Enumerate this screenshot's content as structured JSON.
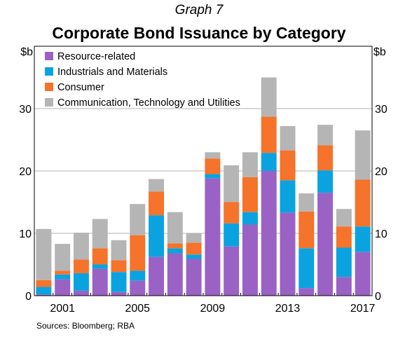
{
  "header": {
    "graph_number": "Graph 7",
    "title": "Corporate Bond Issuance by Category"
  },
  "footer": {
    "source": "Sources:  Bloomberg; RBA"
  },
  "chart_data": {
    "type": "bar",
    "stacked": true,
    "title": "Corporate Bond Issuance by Category",
    "unit_left": "$b",
    "unit_right": "$b",
    "ylim": [
      0,
      40
    ],
    "yticks": [
      0,
      10,
      20,
      30
    ],
    "grid": true,
    "legend_position": "top-left",
    "x": [
      2000,
      2001,
      2002,
      2003,
      2004,
      2005,
      2006,
      2007,
      2008,
      2009,
      2010,
      2011,
      2012,
      2013,
      2014,
      2015,
      2016,
      2017
    ],
    "xtick_labels": [
      "2001",
      "2005",
      "2009",
      "2013",
      "2017"
    ],
    "xtick_years": [
      2001,
      2005,
      2009,
      2013,
      2017
    ],
    "series": [
      {
        "name": "Resource-related",
        "color": "#9a62c4",
        "values": [
          0.2,
          2.6,
          0.8,
          4.3,
          0.6,
          2.4,
          6.2,
          6.8,
          5.9,
          18.8,
          7.9,
          11.4,
          20.0,
          13.3,
          1.2,
          16.5,
          3.0,
          7.0
        ]
      },
      {
        "name": "Industrials and Materials",
        "color": "#0aa3e0",
        "values": [
          1.2,
          0.8,
          2.8,
          0.7,
          3.2,
          1.6,
          6.7,
          0.8,
          0.7,
          0.7,
          3.7,
          2.0,
          2.9,
          5.2,
          6.4,
          3.6,
          4.7,
          4.1
        ]
      },
      {
        "name": "Consumer",
        "color": "#f5732a",
        "values": [
          1.1,
          0.6,
          2.2,
          2.6,
          1.9,
          5.7,
          3.8,
          0.8,
          1.9,
          2.5,
          3.4,
          5.6,
          5.8,
          4.8,
          5.9,
          4.0,
          3.4,
          7.5
        ]
      },
      {
        "name": "Communication, Technology and Utilities",
        "color": "#b5b5b5",
        "values": [
          8.2,
          4.3,
          4.3,
          4.7,
          3.2,
          5.0,
          2.0,
          5.0,
          1.5,
          1.0,
          5.9,
          4.0,
          6.3,
          3.9,
          2.9,
          3.3,
          2.8,
          7.9
        ]
      }
    ]
  }
}
